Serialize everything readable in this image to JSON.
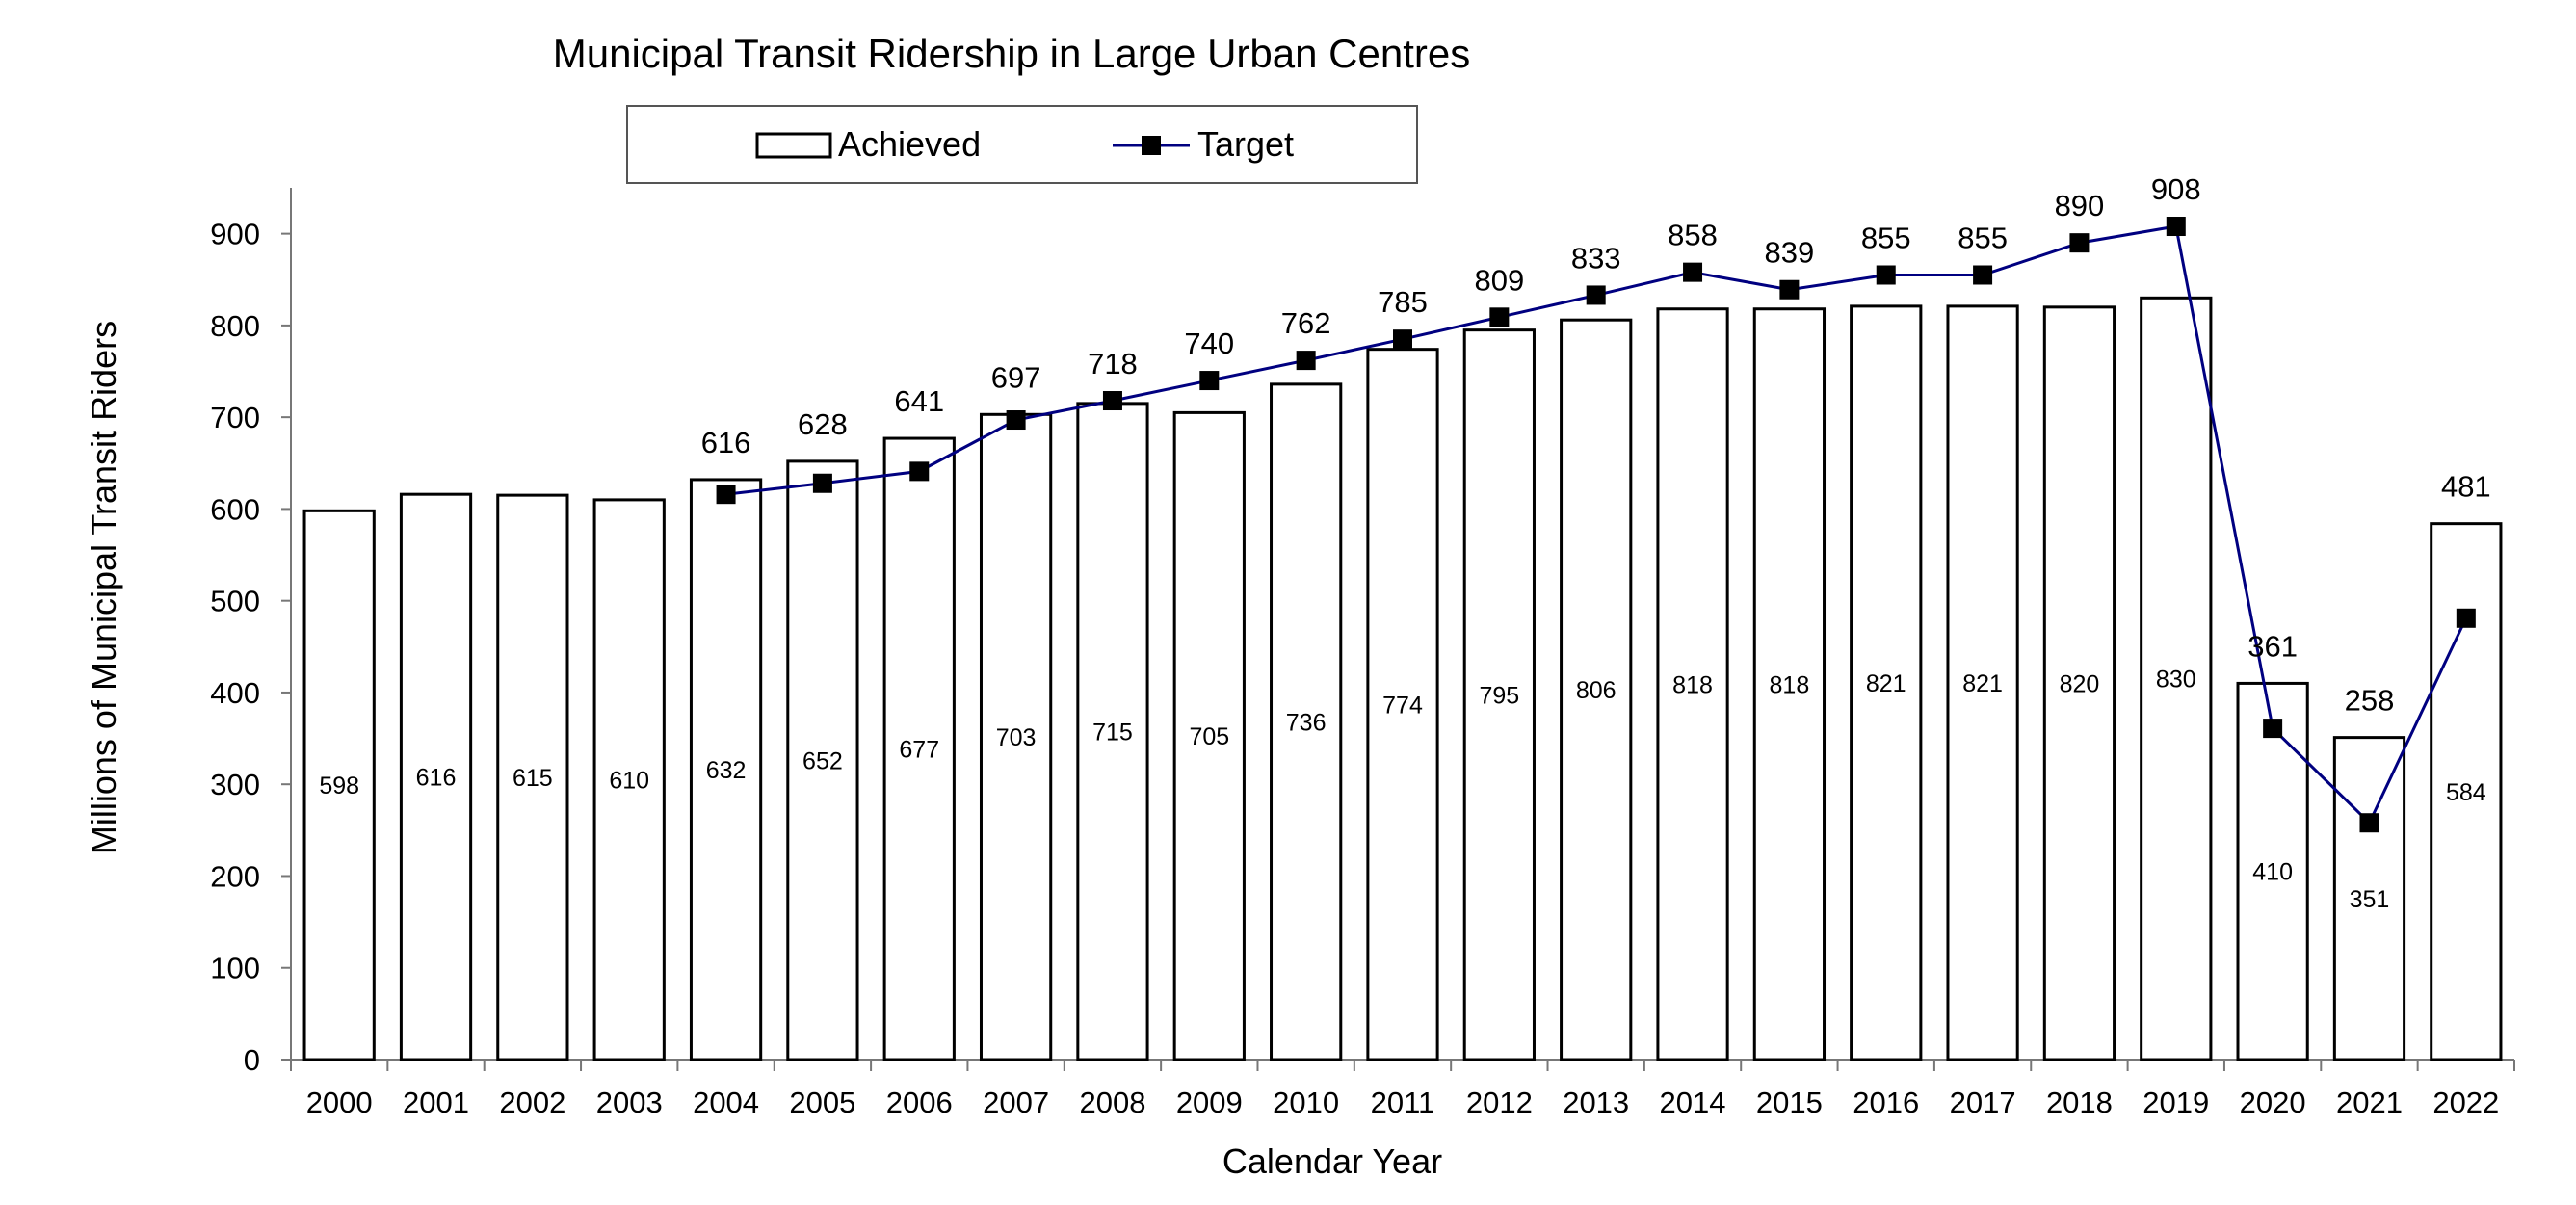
{
  "chart_data": {
    "type": "bar",
    "title": "Municipal Transit Ridership in Large Urban Centres",
    "xlabel": "Calendar Year",
    "ylabel": "Millions of Municipal  Transit Riders",
    "ylim": [
      0,
      950
    ],
    "yticks": [
      0,
      100,
      200,
      300,
      400,
      500,
      600,
      700,
      800,
      900
    ],
    "grid": false,
    "legend_position": "top",
    "categories": [
      "2000",
      "2001",
      "2002",
      "2003",
      "2004",
      "2005",
      "2006",
      "2007",
      "2008",
      "2009",
      "2010",
      "2011",
      "2012",
      "2013",
      "2014",
      "2015",
      "2016",
      "2017",
      "2018",
      "2019",
      "2020",
      "2021",
      "2022"
    ],
    "series": [
      {
        "name": "Achieved",
        "type": "bar",
        "color": "#ffffff",
        "stroke": "#000000",
        "values": [
          598,
          616,
          615,
          610,
          632,
          652,
          677,
          703,
          715,
          705,
          736,
          774,
          795,
          806,
          818,
          818,
          821,
          821,
          820,
          830,
          410,
          351,
          584
        ]
      },
      {
        "name": "Target",
        "type": "line",
        "color": "#000080",
        "marker": "square",
        "values": [
          null,
          null,
          null,
          null,
          616,
          628,
          641,
          697,
          718,
          740,
          762,
          785,
          809,
          833,
          858,
          839,
          855,
          855,
          890,
          908,
          361,
          258,
          481
        ]
      }
    ]
  }
}
